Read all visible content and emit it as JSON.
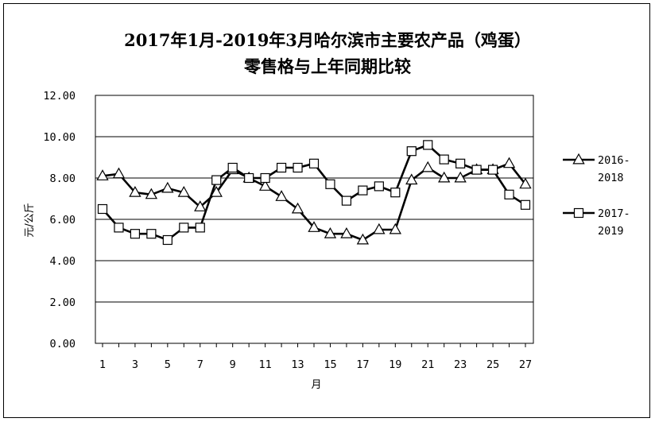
{
  "chart_data": {
    "type": "line",
    "title_line1": "2017年1月-2019年3月哈尔滨市主要农产品（鸡蛋）",
    "title_line2": "零售格与上年同期比较",
    "ylabel": "元/公斤",
    "xlabel": "月",
    "ylim": [
      0,
      12
    ],
    "yticks": [
      "0.00",
      "2.00",
      "4.00",
      "6.00",
      "8.00",
      "10.00",
      "12.00"
    ],
    "x": [
      1,
      2,
      3,
      4,
      5,
      6,
      7,
      8,
      9,
      10,
      11,
      12,
      13,
      14,
      15,
      16,
      17,
      18,
      19,
      20,
      21,
      22,
      23,
      24,
      25,
      26,
      27
    ],
    "xtick_labels": [
      "1",
      "3",
      "5",
      "7",
      "9",
      "11",
      "13",
      "15",
      "17",
      "19",
      "21",
      "23",
      "25",
      "27"
    ],
    "grid": true,
    "legend_position": "right",
    "series": [
      {
        "name": "2016-2018",
        "marker": "triangle",
        "values": [
          8.1,
          8.2,
          7.3,
          7.2,
          7.5,
          7.3,
          6.6,
          7.3,
          8.4,
          8.0,
          7.6,
          7.1,
          6.5,
          5.6,
          5.3,
          5.3,
          5.0,
          5.5,
          5.5,
          7.9,
          8.5,
          8.0,
          8.0,
          8.4,
          8.4,
          8.7,
          7.7
        ]
      },
      {
        "name": "2017-2019",
        "marker": "square",
        "values": [
          6.5,
          5.6,
          5.3,
          5.3,
          5.0,
          5.6,
          5.6,
          7.9,
          8.5,
          8.0,
          8.0,
          8.5,
          8.5,
          8.7,
          7.7,
          6.9,
          7.4,
          7.6,
          7.3,
          9.3,
          9.6,
          8.9,
          8.7,
          8.4,
          8.4,
          7.2,
          6.7
        ]
      }
    ],
    "legend": [
      {
        "line1": "2016-",
        "line2": "2018"
      },
      {
        "line1": "2017-",
        "line2": "2019"
      }
    ]
  }
}
